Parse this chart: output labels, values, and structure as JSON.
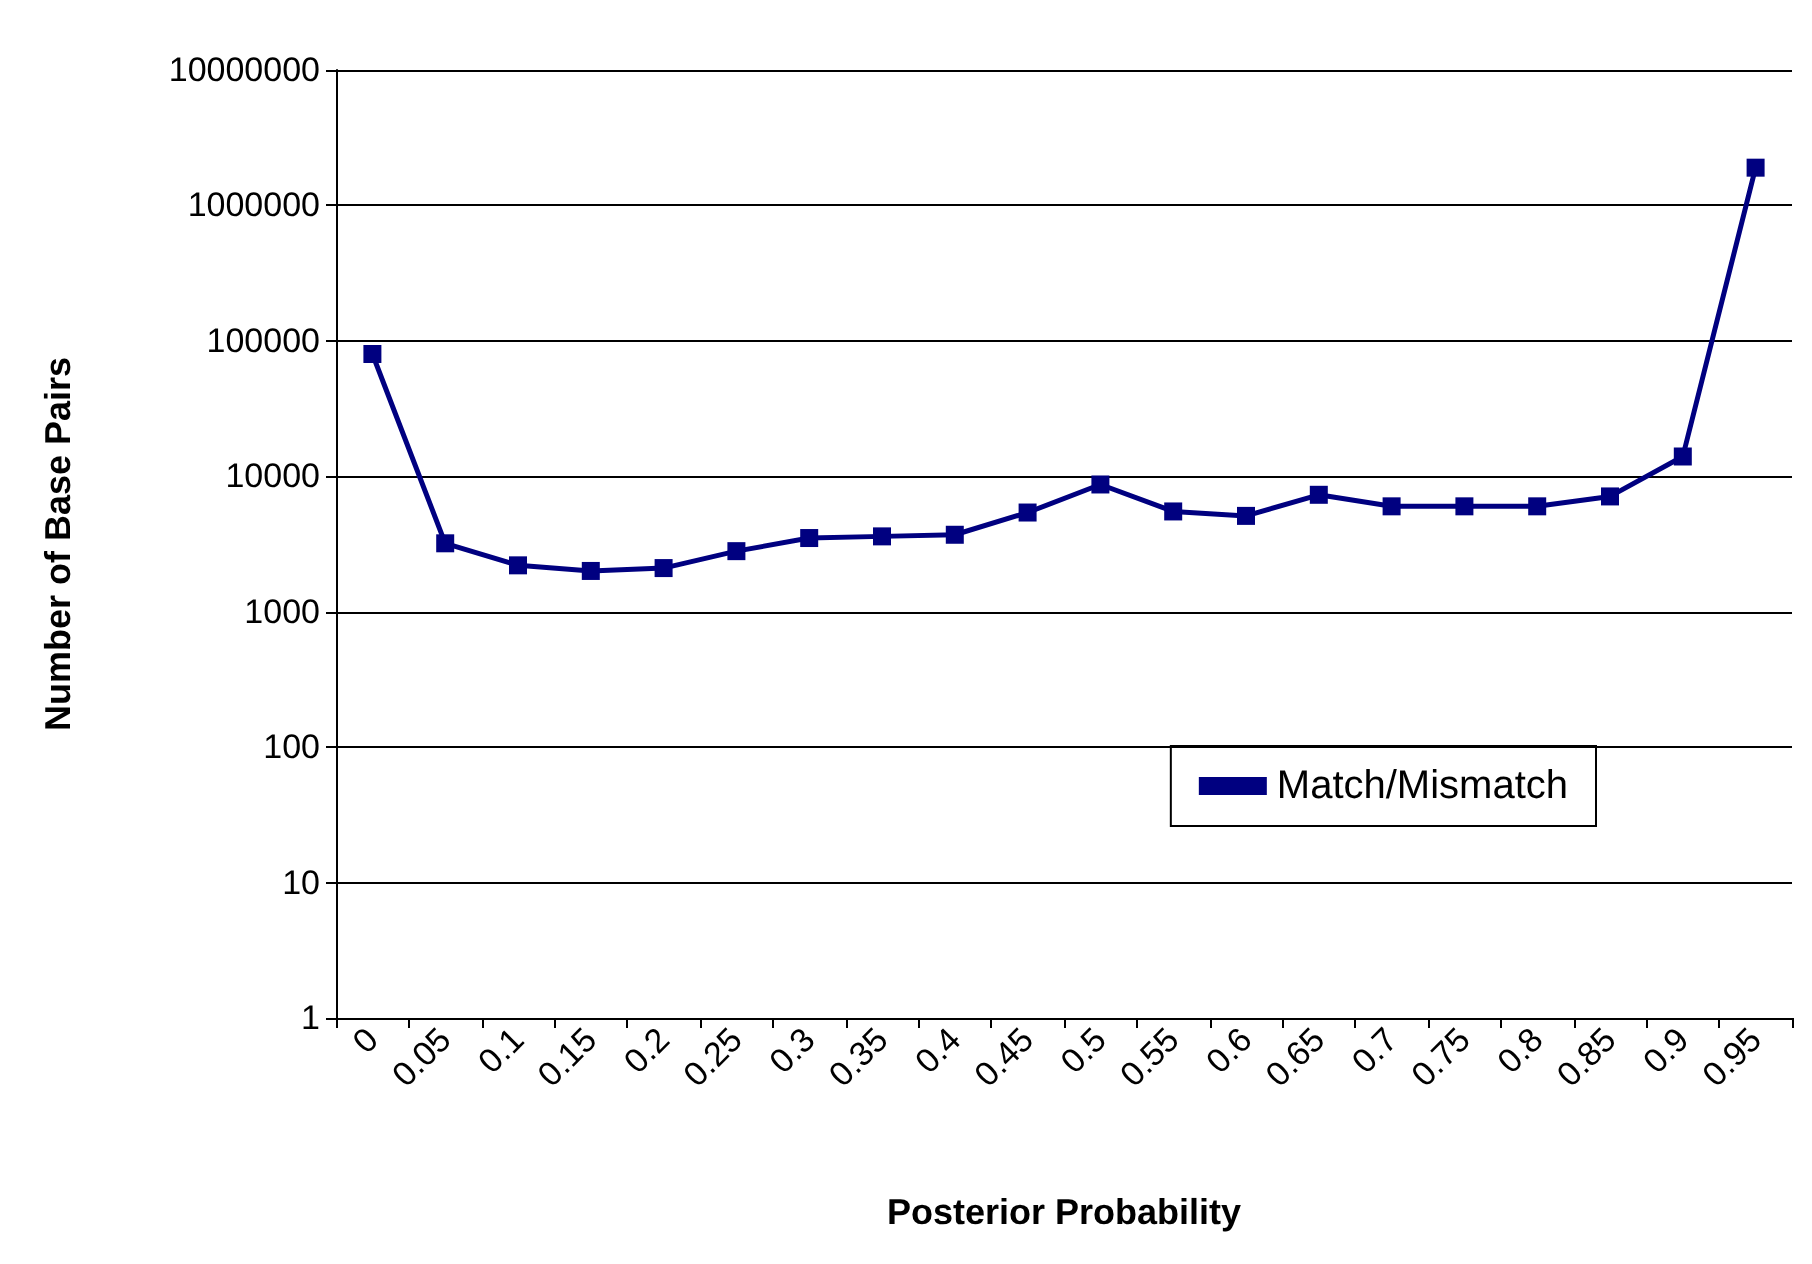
{
  "chart_data": {
    "type": "line",
    "xlabel": "Posterior Probability",
    "ylabel": "Number of Base Pairs",
    "categories": [
      "0",
      "0.05",
      "0.1",
      "0.15",
      "0.2",
      "0.25",
      "0.3",
      "0.35",
      "0.4",
      "0.45",
      "0.5",
      "0.55",
      "0.6",
      "0.65",
      "0.7",
      "0.75",
      "0.8",
      "0.85",
      "0.9",
      "0.95"
    ],
    "series": [
      {
        "name": "Match/Mismatch",
        "color": "#000080",
        "values": [
          80000,
          3200,
          2200,
          2000,
          2100,
          2800,
          3500,
          3600,
          3700,
          5400,
          8700,
          5500,
          5100,
          7300,
          6000,
          6000,
          6000,
          7100,
          14000,
          1900000
        ]
      }
    ],
    "log": "y",
    "ylim": [
      1,
      10000000
    ],
    "yticks": [
      1,
      10,
      100,
      1000,
      10000,
      100000,
      1000000,
      10000000
    ],
    "grid": "y",
    "legend": "right",
    "marker": "square",
    "line_style": "solid"
  }
}
